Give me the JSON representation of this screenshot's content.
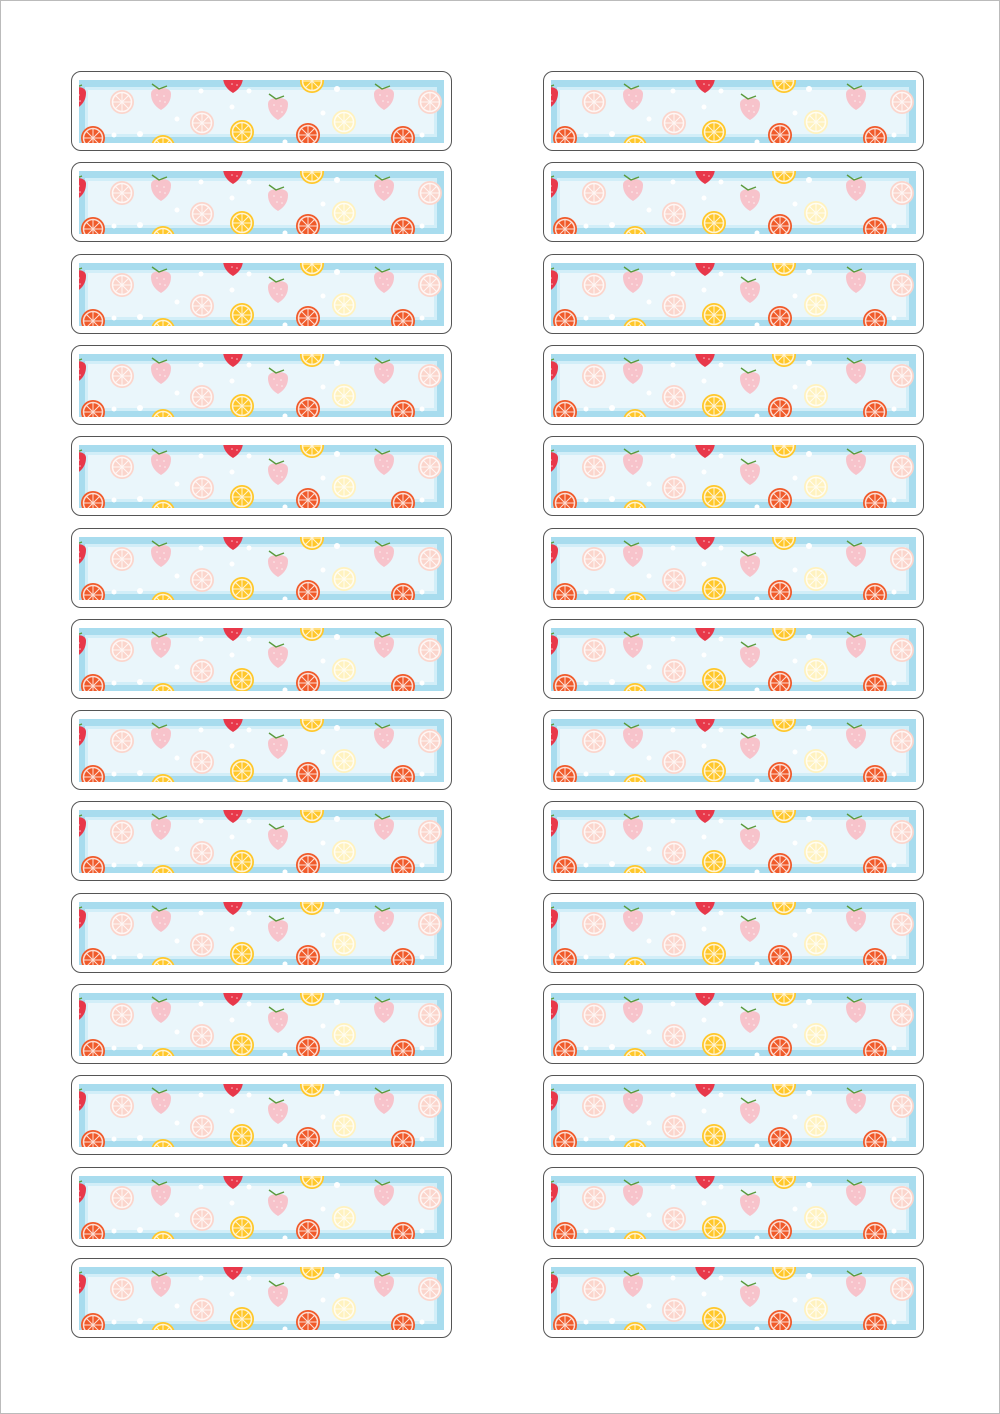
{
  "sheet": {
    "columns": 2,
    "rows": 14,
    "label_style": "fruit pattern (strawberries, citrus slices) on light blue frame",
    "colors": {
      "frame_blue": "#a8dcee",
      "inner_fill": "#eaf6fb",
      "inner_border": "#d2eef8",
      "pink_slice": "#fbd5cc",
      "red_orange": "#f05a2a",
      "lemon": "#ffc72a",
      "pale_lemon": "#fff2bf",
      "strawberry": "#f7c3cb",
      "strawberry_red": "#e8384a",
      "leaf": "#5a9a3c"
    }
  }
}
